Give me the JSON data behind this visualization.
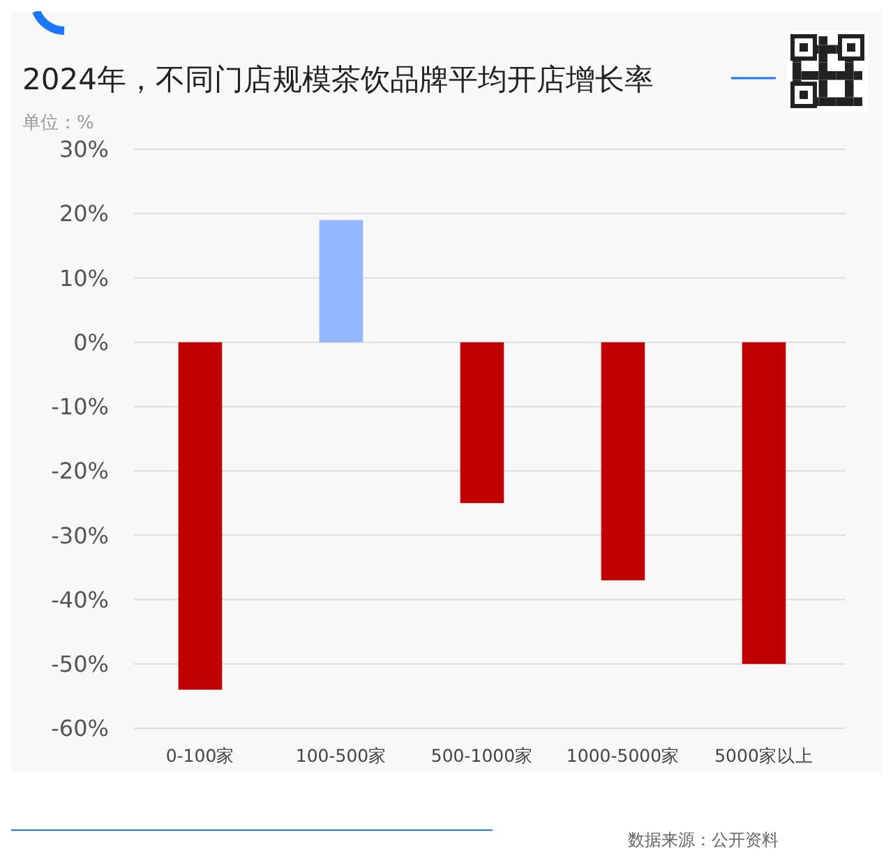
{
  "chart_data": {
    "type": "bar",
    "title": "2024年，不同门店规模茶饮品牌平均开店增长率",
    "ylabel": "单位：%",
    "categories": [
      "0-100家",
      "100-500家",
      "500-1000家",
      "1000-5000家",
      "5000家以上"
    ],
    "values": [
      -54,
      19,
      -25,
      -37,
      -50
    ],
    "colors": [
      "#c00000",
      "#94b8ff",
      "#c00000",
      "#c00000",
      "#c00000"
    ],
    "ylim": [
      -60,
      30
    ],
    "yticks": [
      {
        "value": -60,
        "label": "-60%"
      },
      {
        "value": -50,
        "label": "-50%"
      },
      {
        "value": -40,
        "label": "-40%"
      },
      {
        "value": -30,
        "label": "-30%"
      },
      {
        "value": -20,
        "label": "-20%"
      },
      {
        "value": -10,
        "label": "-10%"
      },
      {
        "value": 0,
        "label": "0%"
      },
      {
        "value": 10,
        "label": "10%"
      },
      {
        "value": 20,
        "label": "20%"
      },
      {
        "value": 30,
        "label": "30%"
      }
    ],
    "grid": "y",
    "annotations": [
      "数据来源：公开资料"
    ]
  }
}
